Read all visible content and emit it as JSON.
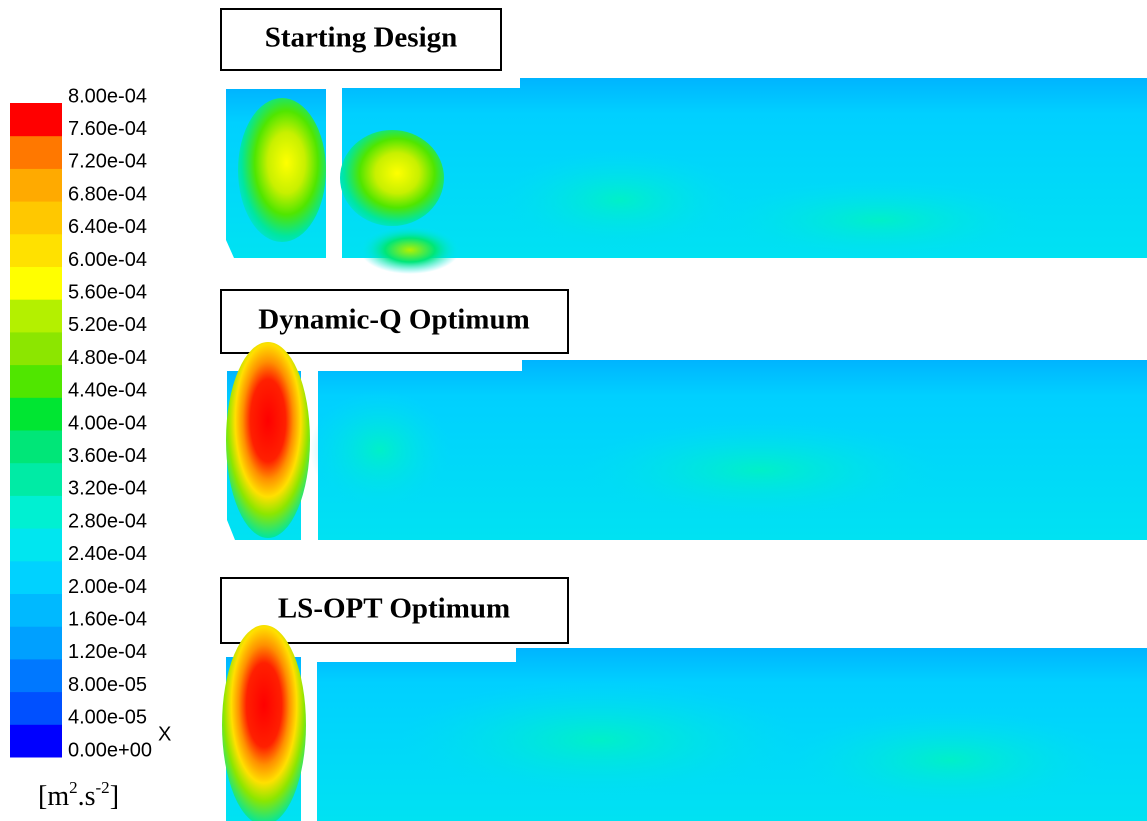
{
  "colorbar": {
    "clim": [
      0,
      0.0008
    ],
    "ticks": [
      {
        "value": 0,
        "label": "0.00e+00"
      },
      {
        "value": 4e-05,
        "label": "4.00e-05"
      },
      {
        "value": 8e-05,
        "label": "8.00e-05"
      },
      {
        "value": 0.00012,
        "label": "1.20e-04"
      },
      {
        "value": 0.00016,
        "label": "1.60e-04"
      },
      {
        "value": 0.0002,
        "label": "2.00e-04"
      },
      {
        "value": 0.00024,
        "label": "2.40e-04"
      },
      {
        "value": 0.00028,
        "label": "2.80e-04"
      },
      {
        "value": 0.00032,
        "label": "3.20e-04"
      },
      {
        "value": 0.00036,
        "label": "3.60e-04"
      },
      {
        "value": 0.0004,
        "label": "4.00e-04"
      },
      {
        "value": 0.00044,
        "label": "4.40e-04"
      },
      {
        "value": 0.00048,
        "label": "4.80e-04"
      },
      {
        "value": 0.00052,
        "label": "5.20e-04"
      },
      {
        "value": 0.00056,
        "label": "5.60e-04"
      },
      {
        "value": 0.0006,
        "label": "6.00e-04"
      },
      {
        "value": 0.00064,
        "label": "6.40e-04"
      },
      {
        "value": 0.00068,
        "label": "6.80e-04"
      },
      {
        "value": 0.00072,
        "label": "7.20e-04"
      },
      {
        "value": 0.00076,
        "label": "7.60e-04"
      },
      {
        "value": 0.0008,
        "label": "8.00e-04"
      }
    ],
    "colors": [
      "#0000ff",
      "#0050ff",
      "#0078ff",
      "#00a0ff",
      "#00b9ff",
      "#00d2ff",
      "#00e6f0",
      "#00f0d2",
      "#00eba5",
      "#00e678",
      "#00e632",
      "#50e600",
      "#8ce600",
      "#b4f000",
      "#ffff00",
      "#ffe100",
      "#ffc800",
      "#ffaa00",
      "#ff7800",
      "#ff0000"
    ],
    "unit": [
      "[m",
      "2",
      ".s",
      "-2",
      "]"
    ],
    "axis_marker": "X"
  },
  "panels": [
    {
      "title": "Starting Design"
    },
    {
      "title": "Dynamic-Q Optimum"
    },
    {
      "title": "LS-OPT Optimum"
    }
  ]
}
